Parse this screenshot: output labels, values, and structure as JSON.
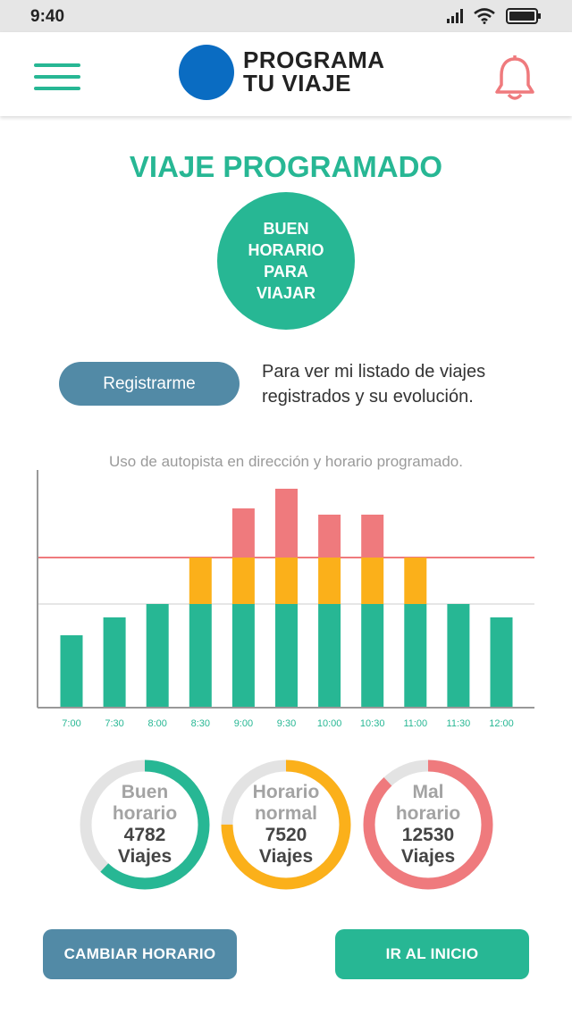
{
  "status_bar": {
    "time": "9:40",
    "icons": [
      "signal-icon",
      "wifi-icon",
      "battery-icon"
    ]
  },
  "header": {
    "brand_line1": "PROGRAMA",
    "brand_line2": "TU VIAJE",
    "menu_icon": "hamburger-icon",
    "bell_icon": "bell-icon"
  },
  "page": {
    "title": "VIAJE PROGRAMADO",
    "status_lines": [
      "BUEN",
      "HORARIO",
      "PARA",
      "VIAJAR"
    ],
    "register_button": "Registrarme",
    "register_desc_line1": "Para ver mi listado de viajes",
    "register_desc_line2": "registrados y su evolución."
  },
  "chart_caption": "Uso de autopista en dirección y horario programado.",
  "chart_data": {
    "type": "bar",
    "stacked": true,
    "categories": [
      "7:00",
      "7:30",
      "8:00",
      "8:30",
      "9:00",
      "9:30",
      "10:00",
      "10:30",
      "11:00",
      "11:30",
      "12:00"
    ],
    "series": [
      {
        "color": "#27b794",
        "values": [
          80,
          100,
          115,
          115,
          115,
          115,
          115,
          115,
          115,
          115,
          100
        ]
      },
      {
        "color": "#fbb01a",
        "values": [
          0,
          0,
          0,
          52,
          52,
          52,
          52,
          52,
          52,
          0,
          0
        ]
      },
      {
        "color": "#ef7a7d",
        "values": [
          0,
          0,
          0,
          0,
          55,
          77,
          48,
          48,
          0,
          0,
          0
        ]
      }
    ],
    "ylim": [
      0,
      265
    ],
    "thresholds": [
      {
        "value": 167,
        "color": "#ef7a7d"
      },
      {
        "value": 115,
        "color": "#dddddd"
      }
    ],
    "grid": false
  },
  "stats": [
    {
      "label1": "Buen",
      "label2": "horario",
      "count": "4782",
      "unit": "Viajes",
      "color": "#27b794",
      "fraction": 0.62
    },
    {
      "label1": "Horario",
      "label2": "normal",
      "count": "7520",
      "unit": "Viajes",
      "color": "#fbb01a",
      "fraction": 0.75
    },
    {
      "label1": "Mal",
      "label2": "horario",
      "count": "12530",
      "unit": "Viajes",
      "color": "#ef7a7d",
      "fraction": 0.88
    }
  ],
  "buttons": {
    "change": "CAMBIAR HORARIO",
    "home": "IR AL INICIO"
  }
}
